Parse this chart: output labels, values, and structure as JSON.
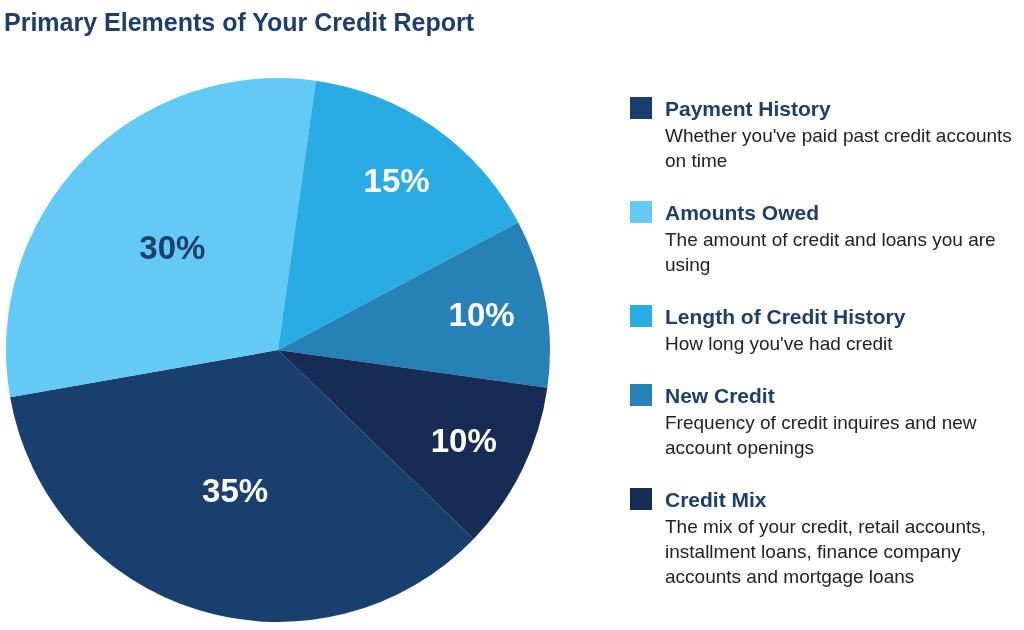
{
  "chart_data": {
    "type": "pie",
    "title": "Primary Elements of Your Credit Report",
    "categories": [
      "Payment History",
      "Amounts Owed",
      "Length of Credit History",
      "New Credit",
      "Credit Mix"
    ],
    "values": [
      35,
      30,
      15,
      10,
      10
    ],
    "value_labels": [
      "35%",
      "30%",
      "15%",
      "10%",
      "10%"
    ],
    "colors": [
      "#183f6e",
      "#62caf4",
      "#29ace3",
      "#2581b6",
      "#172c54"
    ],
    "legend": "right",
    "annotations": [
      "Whether you've paid past credit accounts on time",
      "The amount of credit and loans you are using",
      "How long you've had credit",
      "Frequency of credit inquires and new account openings",
      "The mix of your credit, retail accounts, installment loans, finance company accounts and mortgage loans"
    ]
  }
}
